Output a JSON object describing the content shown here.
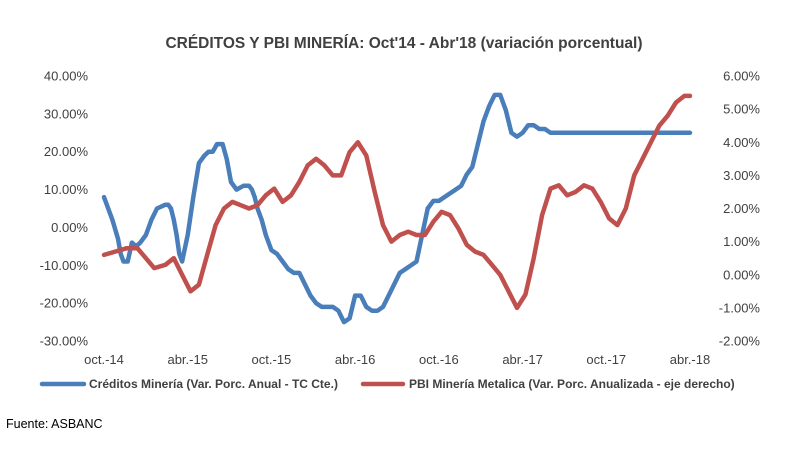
{
  "chart_data": {
    "type": "line",
    "title": "CRÉDITOS Y PBI MINERÍA: Oct'14 - Abr'18 (variación porcentual)",
    "x_labels": [
      "oct.-14",
      "abr.-15",
      "oct.-15",
      "abr.-16",
      "oct.-16",
      "abr.-17",
      "oct.-17",
      "abr.-18"
    ],
    "y_left": {
      "min": -0.3,
      "max": 0.4,
      "ticks": [
        "-30.00%",
        "-20.00%",
        "-10.00%",
        "0.00%",
        "10.00%",
        "20.00%",
        "30.00%",
        "40.00%"
      ]
    },
    "y_right": {
      "min": -0.02,
      "max": 0.06,
      "ticks": [
        "-2.00%",
        "-1.00%",
        "0.00%",
        "1.00%",
        "2.00%",
        "3.00%",
        "4.00%",
        "5.00%",
        "6.00%"
      ]
    },
    "grid": false,
    "legend_position": "bottom",
    "series": [
      {
        "name": "Créditos Minería (Var. Porc. Anual - TC Cte.)",
        "axis": "left",
        "color": "#4a7ebb",
        "x": [
          0.0,
          0.6,
          1.0,
          1.2,
          1.4,
          1.7,
          2.0,
          2.3,
          2.6,
          3.0,
          3.4,
          3.8,
          4.4,
          4.6,
          4.8,
          5.0,
          5.2,
          5.4,
          5.6,
          6.0,
          6.4,
          6.8,
          7.2,
          7.5,
          7.8,
          8.1,
          8.5,
          8.8,
          9.1,
          9.5,
          10.0,
          10.4,
          10.6,
          10.8,
          11.0,
          11.3,
          11.6,
          12.0,
          12.4,
          12.8,
          13.2,
          13.6,
          14.0,
          14.4,
          14.8,
          15.2,
          15.6,
          16.0,
          16.4,
          16.8,
          17.2,
          17.6,
          18.0,
          18.4,
          18.8,
          19.2,
          19.6,
          20.0,
          20.4,
          20.8,
          21.2,
          21.6,
          22.0,
          22.4,
          22.8,
          23.2,
          23.6,
          24.0,
          24.4,
          24.8,
          25.2,
          25.6,
          26.0,
          26.4,
          26.8,
          27.2,
          27.6,
          28.0,
          28.4,
          28.8,
          29.2,
          29.6,
          30.0,
          30.4,
          30.8,
          31.2,
          31.6,
          32.0,
          32.4,
          32.8,
          33.2,
          33.6,
          34.0,
          34.4,
          34.8,
          35.2,
          35.6,
          36.0,
          36.4,
          36.8,
          37.2,
          37.6,
          38.0,
          38.4,
          38.8,
          39.2,
          39.6,
          40.0,
          40.4,
          40.8,
          41.2,
          41.6,
          42.0
        ],
        "y": [
          0.08,
          0.02,
          -0.03,
          -0.07,
          -0.09,
          -0.09,
          -0.04,
          -0.05,
          -0.04,
          -0.02,
          0.02,
          0.05,
          0.06,
          0.06,
          0.05,
          0.02,
          -0.02,
          -0.07,
          -0.09,
          -0.02,
          0.08,
          0.17,
          0.19,
          0.2,
          0.2,
          0.22,
          0.22,
          0.18,
          0.12,
          0.1,
          0.11,
          0.11,
          0.1,
          0.08,
          0.05,
          0.02,
          -0.02,
          -0.06,
          -0.07,
          -0.09,
          -0.11,
          -0.12,
          -0.12,
          -0.15,
          -0.18,
          -0.2,
          -0.21,
          -0.21,
          -0.21,
          -0.22,
          -0.25,
          -0.24,
          -0.18,
          -0.18,
          -0.21,
          -0.22,
          -0.22,
          -0.21,
          -0.18,
          -0.15,
          -0.12,
          -0.11,
          -0.1,
          -0.09,
          -0.02,
          0.05,
          0.07,
          0.07,
          0.08,
          0.09,
          0.1,
          0.11,
          0.14,
          0.16,
          0.22,
          0.28,
          0.32,
          0.35,
          0.35,
          0.31,
          0.25,
          0.24,
          0.25,
          0.27,
          0.27,
          0.26,
          0.26,
          0.25,
          0.25,
          0.25,
          0.25,
          0.25,
          0.25,
          0.25,
          0.25,
          0.25,
          0.25,
          0.25,
          0.25,
          0.25,
          0.25,
          0.25,
          0.25,
          0.25,
          0.25,
          0.25,
          0.25,
          0.25,
          0.25,
          0.25,
          0.25,
          0.25,
          0.25
        ]
      },
      {
        "name": "PBI Minería Metalica (Var. Porc. Anualizada - eje derecho)",
        "axis": "right",
        "color": "#c0504d",
        "x": [
          0.0,
          0.8,
          1.6,
          2.4,
          3.0,
          3.6,
          4.4,
          5.0,
          5.6,
          6.2,
          6.8,
          7.4,
          8.0,
          8.6,
          9.2,
          9.8,
          10.4,
          11.0,
          11.6,
          12.2,
          12.8,
          13.4,
          14.0,
          14.6,
          15.2,
          15.8,
          16.4,
          17.0,
          17.6,
          18.2,
          18.8,
          19.4,
          20.0,
          20.6,
          21.2,
          21.8,
          22.4,
          23.0,
          23.6,
          24.2,
          24.8,
          25.4,
          26.0,
          26.6,
          27.2,
          27.8,
          28.4,
          29.0,
          29.6,
          30.2,
          30.8,
          31.4,
          32.0,
          32.6,
          33.2,
          33.8,
          34.4,
          35.0,
          35.6,
          36.2,
          36.8,
          37.4,
          38.0,
          38.6,
          39.2,
          39.8,
          40.4,
          41.0,
          41.6,
          42.0
        ],
        "y": [
          0.006,
          0.007,
          0.008,
          0.008,
          0.005,
          0.002,
          0.003,
          0.005,
          0.0,
          -0.005,
          -0.003,
          0.006,
          0.015,
          0.02,
          0.022,
          0.021,
          0.02,
          0.021,
          0.024,
          0.026,
          0.022,
          0.024,
          0.028,
          0.033,
          0.035,
          0.033,
          0.03,
          0.03,
          0.037,
          0.04,
          0.036,
          0.025,
          0.015,
          0.01,
          0.012,
          0.013,
          0.012,
          0.012,
          0.016,
          0.019,
          0.018,
          0.014,
          0.009,
          0.007,
          0.006,
          0.003,
          0.0,
          -0.005,
          -0.01,
          -0.006,
          0.005,
          0.018,
          0.026,
          0.027,
          0.024,
          0.025,
          0.027,
          0.026,
          0.022,
          0.017,
          0.015,
          0.02,
          0.03,
          0.035,
          0.04,
          0.045,
          0.048,
          0.052,
          0.054,
          0.054
        ]
      }
    ]
  },
  "source_note": "Fuente: ASBANC"
}
